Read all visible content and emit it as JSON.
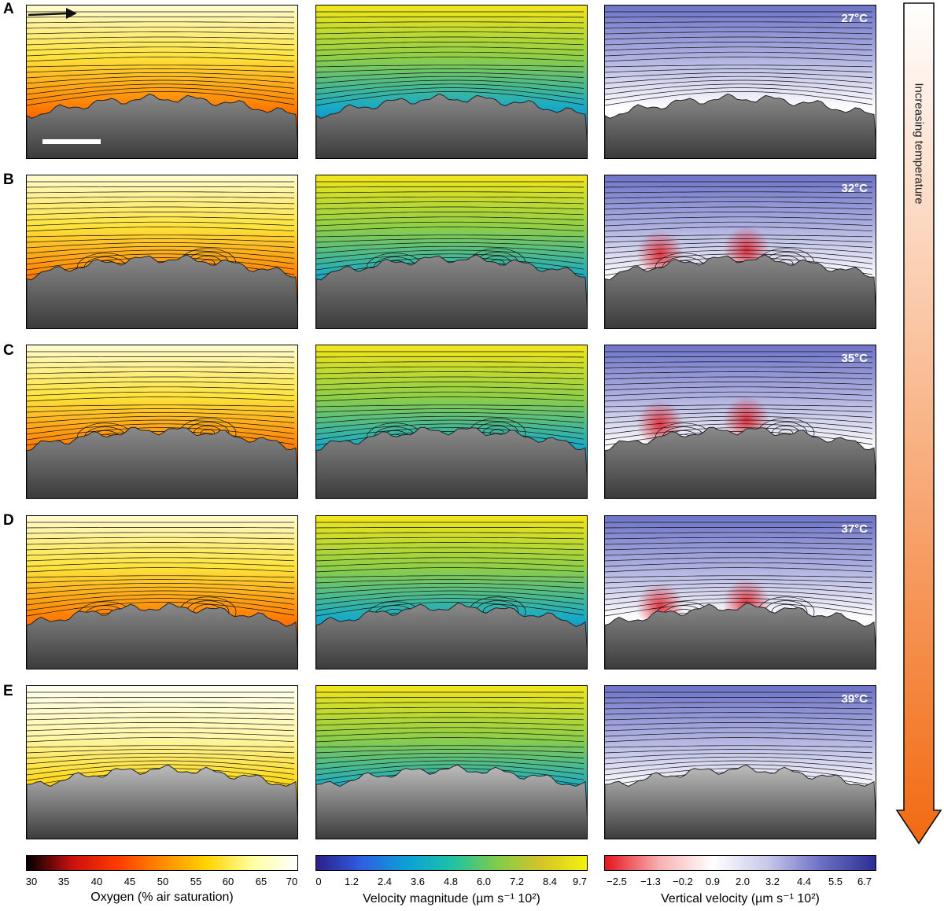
{
  "rows": [
    {
      "label": "A",
      "temperature": "27°C"
    },
    {
      "label": "B",
      "temperature": "32°C"
    },
    {
      "label": "C",
      "temperature": "35°C"
    },
    {
      "label": "D",
      "temperature": "37°C"
    },
    {
      "label": "E",
      "temperature": "39°C"
    }
  ],
  "colorbars": {
    "oxygen": {
      "title": "Oxygen (% air saturation)",
      "ticks": [
        "30",
        "35",
        "40",
        "45",
        "50",
        "55",
        "60",
        "65",
        "70"
      ],
      "colors": [
        "#000000",
        "#c81010",
        "#ff3a00",
        "#ff8a00",
        "#ffd400",
        "#ffffa0",
        "#ffffff"
      ]
    },
    "velocity": {
      "title": "Velocity magnitude (µm s⁻¹ 10²)",
      "ticks": [
        "0",
        "1.2",
        "2.4",
        "3.6",
        "4.8",
        "6.0",
        "7.2",
        "8.4",
        "9.7"
      ],
      "colors": [
        "#2c1f8c",
        "#2f5fe0",
        "#0ca0d8",
        "#1cc2a6",
        "#7fcc4c",
        "#d6c528",
        "#f3f20e"
      ]
    },
    "vertical": {
      "title": "Vertical velocity (µm s⁻¹ 10²)",
      "ticks": [
        "−2.5",
        "−1.3",
        "−0.2",
        "0.9",
        "2.0",
        "3.2",
        "4.4",
        "5.5",
        "6.7"
      ],
      "colors": [
        "#e5141e",
        "#f8b0b0",
        "#ffffff",
        "#c8c8ea",
        "#6b70c4",
        "#2b2f93"
      ]
    }
  },
  "side_arrow": {
    "label": "Increasing temperature",
    "color_top": "#ffffff",
    "color_bottom": "#f26a12"
  }
}
